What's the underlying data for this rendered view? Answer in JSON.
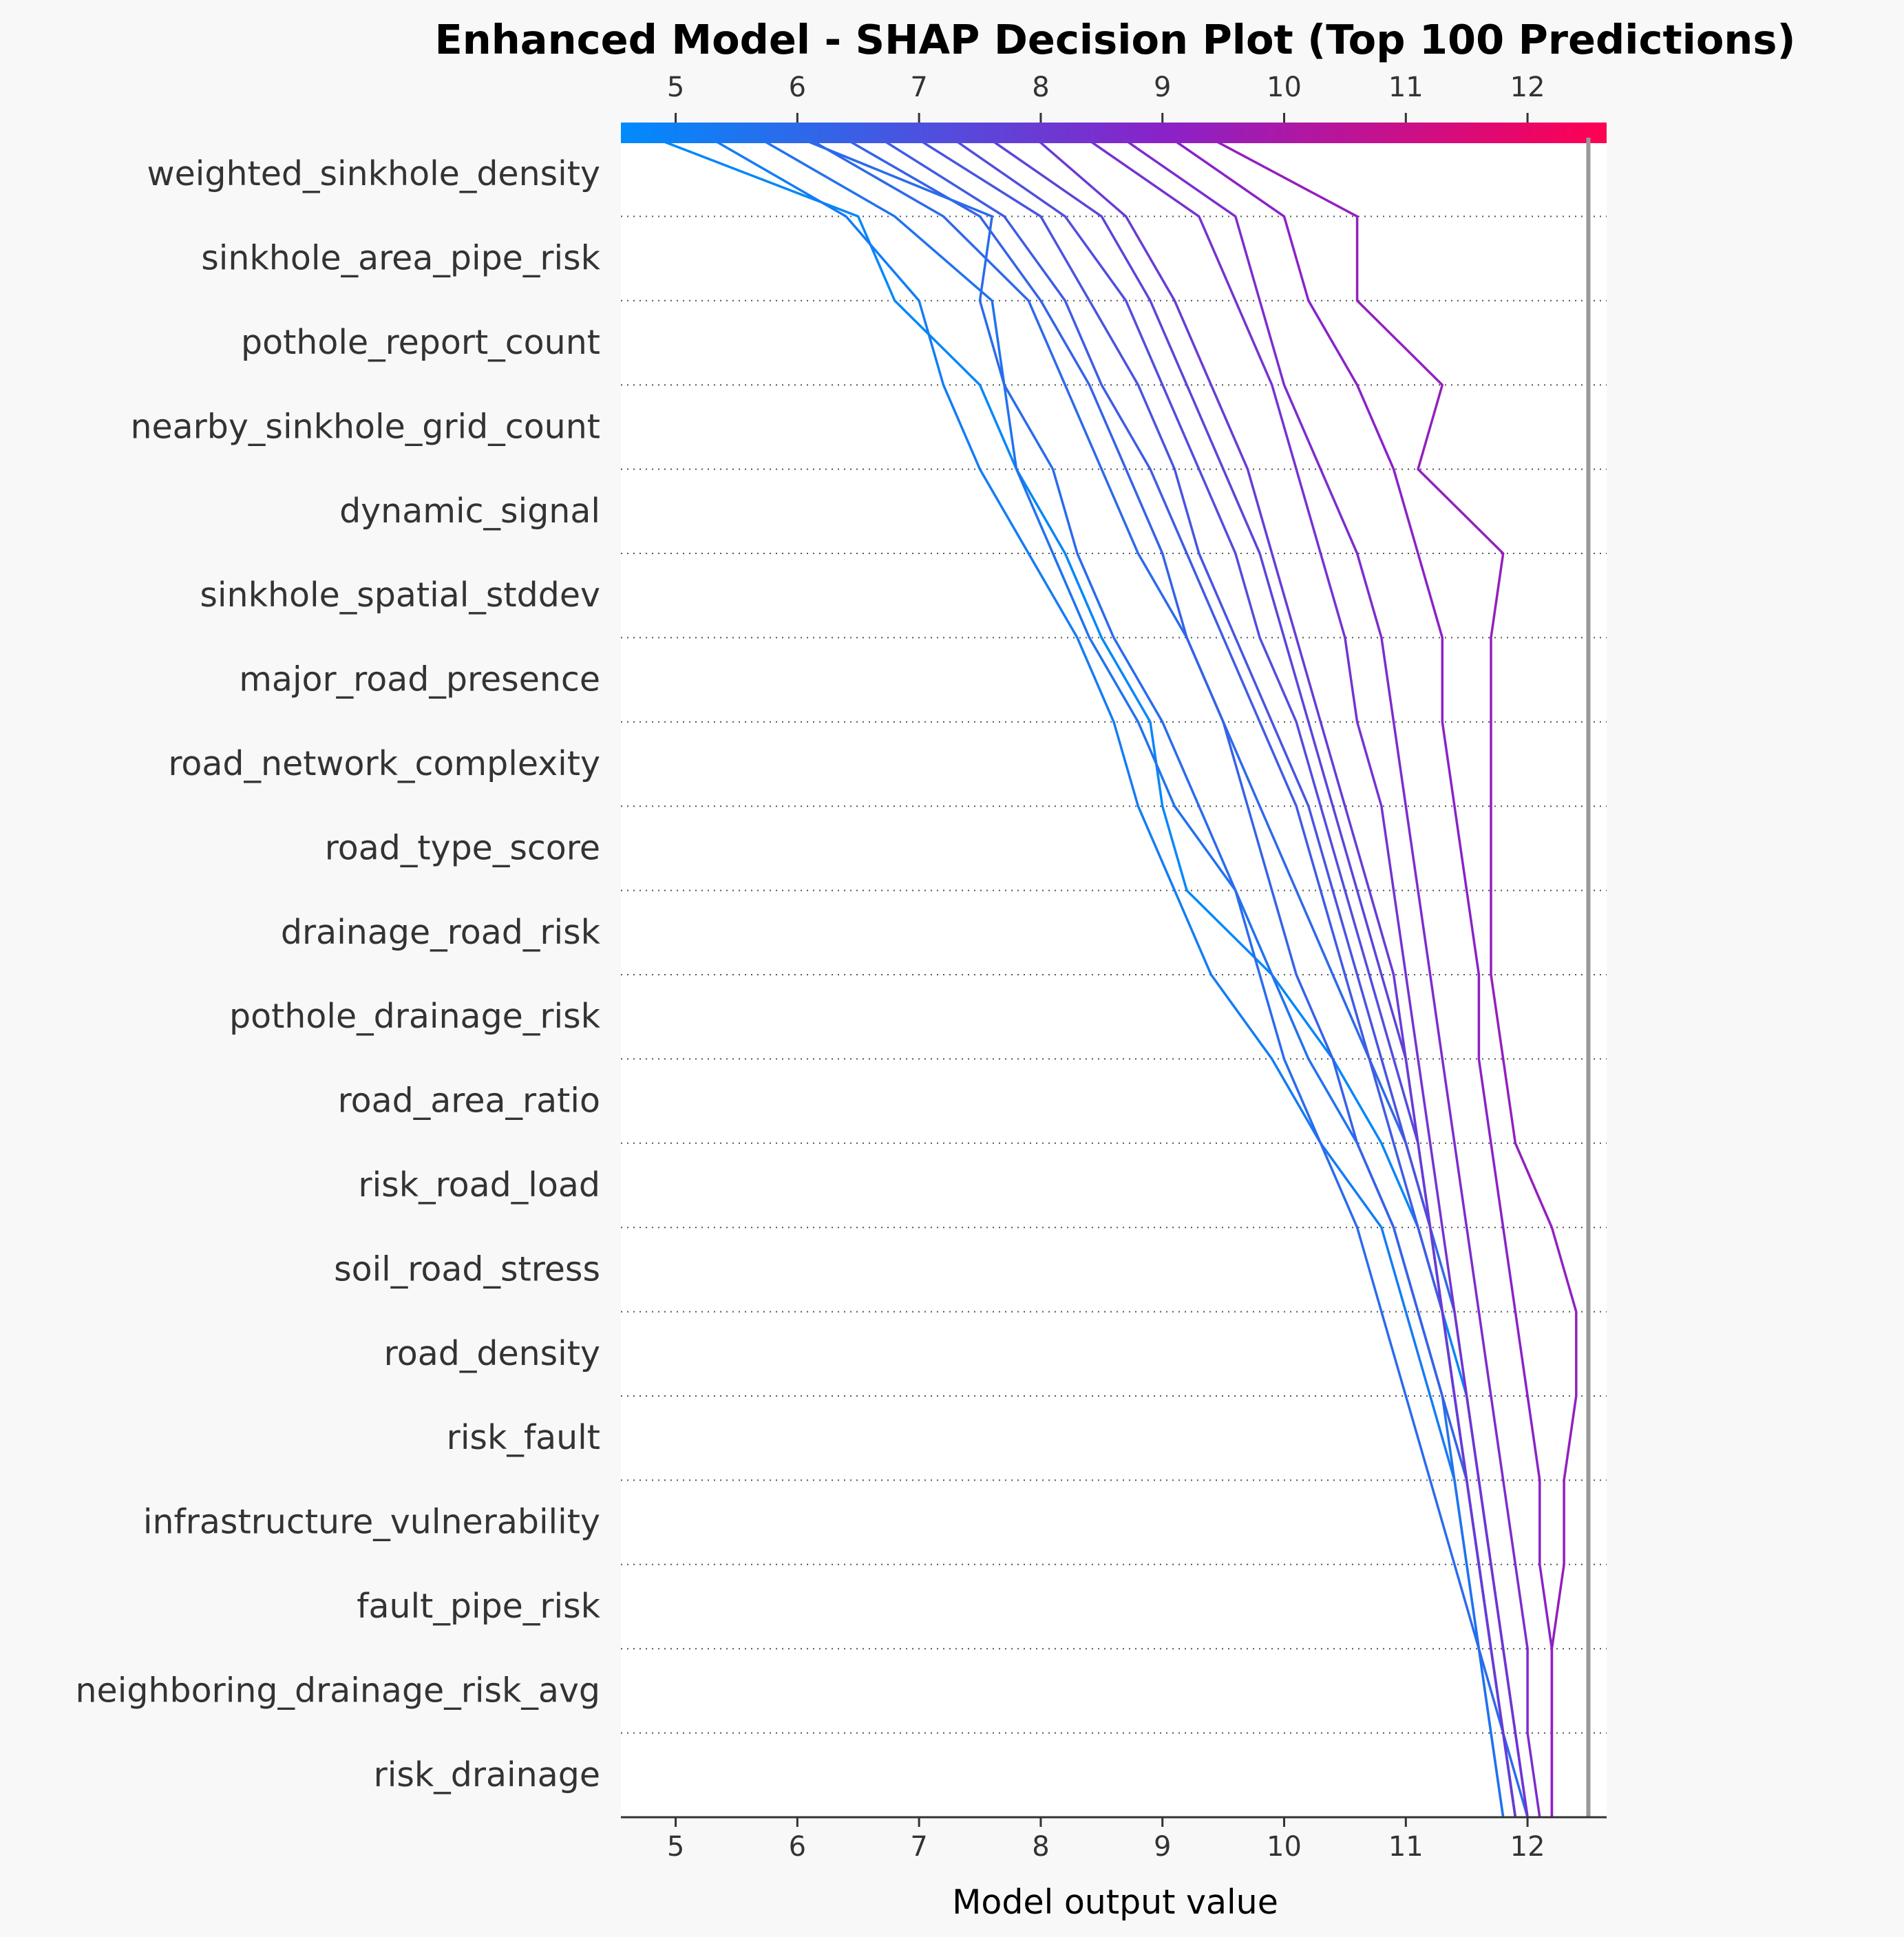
{
  "chart_data": {
    "type": "line",
    "title": "Enhanced Model - SHAP Decision Plot (Top 100 Predictions)",
    "xlabel": "Model output value",
    "xlim": [
      4.55,
      12.65
    ],
    "xticks": [
      5,
      6,
      7,
      8,
      9,
      10,
      11,
      12
    ],
    "expected_value": 12.5,
    "colorbar": {
      "min": 4.55,
      "max": 12.65,
      "low_color": "#008bfb",
      "mid_color": "#8a22c8",
      "high_color": "#ff0052"
    },
    "grid": "dotted horizontal separators between features",
    "features": [
      "weighted_sinkhole_density",
      "sinkhole_area_pipe_risk",
      "pothole_report_count",
      "nearby_sinkhole_grid_count",
      "dynamic_signal",
      "sinkhole_spatial_stddev",
      "major_road_presence",
      "road_network_complexity",
      "road_type_score",
      "drainage_road_risk",
      "pothole_drainage_risk",
      "road_area_ratio",
      "risk_road_load",
      "soil_road_stress",
      "road_density",
      "risk_fault",
      "infrastructure_vulnerability",
      "fault_pipe_risk",
      "neighboring_drainage_risk_avg",
      "risk_drainage"
    ],
    "series": [
      {
        "values": [
          4.7,
          6.5,
          6.8,
          7.5,
          7.8,
          8.2,
          8.5,
          8.9,
          9.0,
          9.2,
          9.9,
          10.4,
          10.8,
          11.1,
          11.3,
          11.5,
          11.6,
          11.7,
          11.8,
          11.9,
          12.0
        ]
      },
      {
        "values": [
          5.2,
          6.4,
          7.0,
          7.2,
          7.5,
          7.9,
          8.3,
          8.6,
          8.8,
          9.1,
          9.4,
          9.9,
          10.3,
          10.8,
          11.0,
          11.2,
          11.4,
          11.5,
          11.6,
          11.7,
          11.8
        ]
      },
      {
        "values": [
          5.6,
          6.8,
          7.6,
          7.7,
          7.8,
          8.1,
          8.4,
          8.8,
          9.1,
          9.6,
          9.9,
          10.2,
          10.6,
          10.9,
          11.1,
          11.3,
          11.4,
          11.5,
          11.6,
          11.7,
          11.8
        ]
      },
      {
        "values": [
          6.0,
          7.2,
          7.9,
          8.2,
          8.5,
          8.8,
          9.2,
          9.5,
          9.8,
          10.1,
          10.4,
          10.7,
          11.0,
          11.2,
          11.4,
          11.5,
          11.6,
          11.7,
          11.8,
          11.9,
          12.0
        ]
      },
      {
        "values": [
          6.3,
          7.5,
          8.0,
          8.4,
          8.7,
          9.0,
          9.2,
          9.5,
          9.7,
          9.9,
          10.1,
          10.4,
          10.6,
          10.9,
          11.1,
          11.3,
          11.5,
          11.6,
          11.7,
          11.8,
          11.9
        ]
      },
      {
        "values": [
          5.9,
          7.6,
          7.5,
          7.7,
          8.1,
          8.3,
          8.6,
          9.0,
          9.3,
          9.6,
          9.8,
          10.0,
          10.3,
          10.6,
          10.8,
          11.0,
          11.2,
          11.4,
          11.6,
          11.8,
          12.0
        ]
      },
      {
        "values": [
          6.6,
          7.7,
          8.2,
          8.5,
          8.9,
          9.2,
          9.5,
          9.8,
          10.1,
          10.3,
          10.5,
          10.7,
          10.9,
          11.1,
          11.3,
          11.4,
          11.5,
          11.6,
          11.7,
          11.8,
          11.9
        ]
      },
      {
        "values": [
          6.9,
          8.0,
          8.4,
          8.8,
          9.1,
          9.3,
          9.6,
          9.9,
          10.2,
          10.4,
          10.6,
          10.8,
          11.0,
          11.2,
          11.3,
          11.4,
          11.5,
          11.6,
          11.7,
          11.8,
          11.9
        ]
      },
      {
        "values": [
          7.2,
          8.2,
          8.7,
          9.0,
          9.3,
          9.6,
          9.8,
          10.1,
          10.3,
          10.5,
          10.7,
          10.9,
          11.1,
          11.2,
          11.3,
          11.4,
          11.5,
          11.6,
          11.7,
          11.8,
          11.9
        ]
      },
      {
        "values": [
          7.5,
          8.5,
          8.9,
          9.2,
          9.5,
          9.8,
          10.0,
          10.2,
          10.4,
          10.6,
          10.8,
          11.0,
          11.1,
          11.2,
          11.3,
          11.4,
          11.5,
          11.6,
          11.7,
          11.8,
          11.9
        ]
      },
      {
        "values": [
          7.9,
          8.7,
          9.1,
          9.4,
          9.7,
          9.9,
          10.1,
          10.3,
          10.5,
          10.7,
          10.9,
          11.0,
          11.1,
          11.2,
          11.3,
          11.4,
          11.5,
          11.6,
          11.7,
          11.8,
          11.9
        ]
      },
      {
        "values": [
          8.3,
          9.3,
          9.6,
          9.9,
          10.1,
          10.3,
          10.5,
          10.6,
          10.8,
          10.9,
          11.0,
          11.1,
          11.2,
          11.3,
          11.4,
          11.5,
          11.6,
          11.7,
          11.8,
          11.9,
          12.0
        ]
      },
      {
        "values": [
          8.6,
          9.6,
          9.8,
          10.0,
          10.3,
          10.6,
          10.8,
          10.9,
          11.0,
          11.1,
          11.2,
          11.3,
          11.4,
          11.5,
          11.6,
          11.7,
          11.8,
          11.9,
          12.0,
          12.0,
          12.1
        ]
      },
      {
        "values": [
          9.0,
          10.0,
          10.2,
          10.6,
          10.9,
          11.1,
          11.3,
          11.3,
          11.4,
          11.5,
          11.6,
          11.6,
          11.7,
          11.8,
          11.9,
          12.0,
          12.1,
          12.1,
          12.2,
          12.2,
          12.2
        ]
      },
      {
        "values": [
          9.3,
          10.6,
          10.6,
          11.3,
          11.1,
          11.8,
          11.7,
          11.7,
          11.7,
          11.7,
          11.7,
          11.8,
          11.9,
          12.2,
          12.4,
          12.4,
          12.3,
          12.3,
          12.2,
          12.2,
          12.2
        ]
      }
    ]
  }
}
